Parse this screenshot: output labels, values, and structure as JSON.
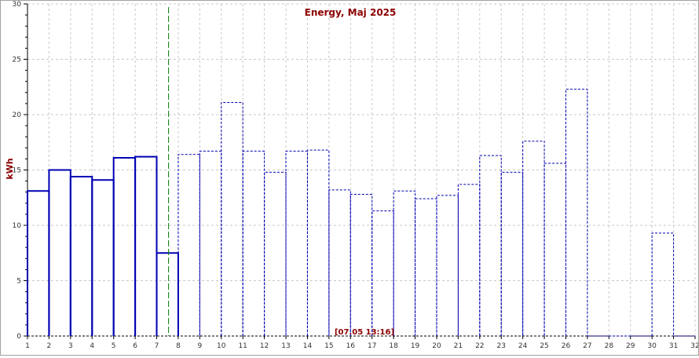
{
  "chart_data": {
    "type": "bar",
    "title": "Energy, Maj 2025",
    "ylabel": "kWh",
    "xlabel": "",
    "ylim": [
      0,
      30
    ],
    "xlim": [
      1,
      32
    ],
    "y_ticks": [
      0,
      5,
      10,
      15,
      20,
      25,
      30
    ],
    "x_ticks": [
      1,
      2,
      3,
      4,
      5,
      6,
      7,
      8,
      9,
      10,
      11,
      12,
      13,
      14,
      15,
      16,
      17,
      18,
      19,
      20,
      21,
      22,
      23,
      24,
      25,
      26,
      27,
      28,
      29,
      30,
      31,
      32
    ],
    "grid": true,
    "current_time_label": "[07.05 13:16]",
    "current_time_x": 7.55,
    "colors": {
      "bar": "#0000b4",
      "grid": "#c8c8c8",
      "marker": "#008000",
      "text": "#8b0000"
    },
    "series": [
      {
        "style": "actual",
        "days": [
          1,
          2,
          3,
          4,
          5,
          6,
          7
        ],
        "values": [
          13.1,
          15.0,
          14.4,
          14.1,
          16.1,
          16.2,
          7.5
        ]
      },
      {
        "style": "estimate",
        "days": [
          8,
          9,
          10,
          11,
          12,
          13,
          14,
          15,
          16,
          17,
          18,
          19,
          20,
          21,
          22,
          23,
          24,
          25,
          26,
          27,
          28,
          29,
          30,
          31
        ],
        "values": [
          16.4,
          16.7,
          21.1,
          16.7,
          14.8,
          16.7,
          16.8,
          13.2,
          12.8,
          11.3,
          13.1,
          12.4,
          12.7,
          13.7,
          16.3,
          14.8,
          17.6,
          15.6,
          22.3,
          0,
          0,
          0,
          9.3,
          0
        ]
      }
    ]
  }
}
